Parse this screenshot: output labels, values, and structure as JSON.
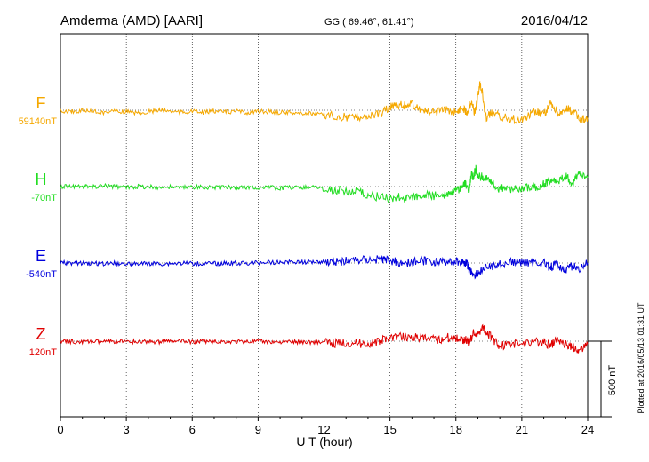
{
  "header": {
    "station": "Amderma (AMD)  [AARI]",
    "coords": "GG ( 69.46°,  61.41°)",
    "date": "2016/04/12"
  },
  "footer": {
    "plotted": "Plotted at 2016/05/13 01:31  UT"
  },
  "chart_data": {
    "type": "line",
    "title": "Amderma (AMD)  [AARI]",
    "xlabel": "U T (hour)",
    "ylabel": "",
    "x_ticks": [
      0,
      3,
      6,
      9,
      12,
      15,
      18,
      21,
      24
    ],
    "xlim": [
      0,
      24
    ],
    "scale_bar": "500 nT",
    "grid": true,
    "colors": {
      "F": "#f5a800",
      "H": "#22dd22",
      "E": "#0000dd",
      "Z": "#e00000"
    },
    "series": [
      {
        "name": "F",
        "baseline_label": "59140nT",
        "baseline_nT": 59140,
        "points": [
          [
            0,
            -6
          ],
          [
            0.5,
            -10
          ],
          [
            1,
            0
          ],
          [
            1.5,
            -8
          ],
          [
            2,
            -15
          ],
          [
            2.5,
            -5
          ],
          [
            3,
            -10
          ],
          [
            3.5,
            -18
          ],
          [
            4,
            -10
          ],
          [
            4.5,
            0
          ],
          [
            5,
            -5
          ],
          [
            5.5,
            -12
          ],
          [
            6,
            -8
          ],
          [
            6.5,
            -15
          ],
          [
            7,
            -5
          ],
          [
            7.5,
            -12
          ],
          [
            8,
            -8
          ],
          [
            8.5,
            -14
          ],
          [
            9,
            -10
          ],
          [
            9.5,
            -8
          ],
          [
            10,
            -16
          ],
          [
            10.5,
            -12
          ],
          [
            11,
            -20
          ],
          [
            11.5,
            -24
          ],
          [
            12,
            -28
          ],
          [
            12.5,
            -40
          ],
          [
            13,
            -48
          ],
          [
            13.5,
            -44
          ],
          [
            14,
            -38
          ],
          [
            14.5,
            -30
          ],
          [
            15,
            20
          ],
          [
            15.2,
            40
          ],
          [
            15.6,
            30
          ],
          [
            16,
            40
          ],
          [
            16.4,
            10
          ],
          [
            16.8,
            -20
          ],
          [
            17.2,
            -10
          ],
          [
            17.6,
            0
          ],
          [
            18,
            -10
          ],
          [
            18.3,
            20
          ],
          [
            18.5,
            -10
          ],
          [
            18.7,
            60
          ],
          [
            18.85,
            -20
          ],
          [
            19,
            90
          ],
          [
            19.1,
            180
          ],
          [
            19.2,
            120
          ],
          [
            19.35,
            -50
          ],
          [
            19.6,
            -20
          ],
          [
            20,
            -40
          ],
          [
            20.5,
            -60
          ],
          [
            21,
            -60
          ],
          [
            21.3,
            -40
          ],
          [
            21.6,
            -10
          ],
          [
            22,
            -30
          ],
          [
            22.3,
            40
          ],
          [
            22.5,
            10
          ],
          [
            22.8,
            -30
          ],
          [
            23.1,
            10
          ],
          [
            23.4,
            -20
          ],
          [
            23.7,
            -60
          ],
          [
            24,
            -50
          ]
        ]
      },
      {
        "name": "H",
        "baseline_label": "-70nT",
        "baseline_nT": -70,
        "points": [
          [
            0,
            0
          ],
          [
            0.5,
            4
          ],
          [
            1,
            0
          ],
          [
            1.5,
            -2
          ],
          [
            2,
            4
          ],
          [
            2.5,
            0
          ],
          [
            3,
            -4
          ],
          [
            3.5,
            0
          ],
          [
            4,
            -2
          ],
          [
            4.5,
            -6
          ],
          [
            5,
            -4
          ],
          [
            5.5,
            -8
          ],
          [
            6,
            -2
          ],
          [
            6.5,
            -6
          ],
          [
            7,
            -4
          ],
          [
            7.5,
            -2
          ],
          [
            8,
            -6
          ],
          [
            8.5,
            -4
          ],
          [
            9,
            -8
          ],
          [
            9.5,
            -6
          ],
          [
            10,
            -10
          ],
          [
            10.5,
            -4
          ],
          [
            11,
            -6
          ],
          [
            11.5,
            0
          ],
          [
            12,
            -18
          ],
          [
            12.5,
            -20
          ],
          [
            13,
            -26
          ],
          [
            13.5,
            -34
          ],
          [
            14,
            -60
          ],
          [
            14.5,
            -66
          ],
          [
            15,
            -76
          ],
          [
            15.4,
            -72
          ],
          [
            15.8,
            -80
          ],
          [
            16.2,
            -60
          ],
          [
            16.6,
            -56
          ],
          [
            17,
            -60
          ],
          [
            17.4,
            -54
          ],
          [
            17.8,
            -38
          ],
          [
            18,
            -28
          ],
          [
            18.2,
            -8
          ],
          [
            18.4,
            20
          ],
          [
            18.6,
            -20
          ],
          [
            18.7,
            90
          ],
          [
            18.8,
            60
          ],
          [
            18.9,
            120
          ],
          [
            19,
            70
          ],
          [
            19.3,
            60
          ],
          [
            19.6,
            40
          ],
          [
            19.9,
            -10
          ],
          [
            20.2,
            -10
          ],
          [
            20.6,
            -20
          ],
          [
            21,
            -8
          ],
          [
            21.4,
            -6
          ],
          [
            21.8,
            -12
          ],
          [
            22,
            20
          ],
          [
            22.3,
            40
          ],
          [
            22.6,
            30
          ],
          [
            23,
            70
          ],
          [
            23.3,
            20
          ],
          [
            23.6,
            80
          ],
          [
            24,
            60
          ]
        ]
      },
      {
        "name": "E",
        "baseline_label": "-540nT",
        "baseline_nT": -540,
        "points": [
          [
            0,
            0
          ],
          [
            0.5,
            0
          ],
          [
            1,
            -4
          ],
          [
            1.5,
            -2
          ],
          [
            2,
            -4
          ],
          [
            2.5,
            -2
          ],
          [
            3,
            -4
          ],
          [
            3.5,
            -6
          ],
          [
            4,
            -4
          ],
          [
            4.5,
            -6
          ],
          [
            5,
            -4
          ],
          [
            5.5,
            -2
          ],
          [
            6,
            -2
          ],
          [
            6.5,
            -6
          ],
          [
            7,
            -4
          ],
          [
            7.5,
            -2
          ],
          [
            8,
            0
          ],
          [
            8.5,
            -2
          ],
          [
            9,
            2
          ],
          [
            9.5,
            6
          ],
          [
            10,
            4
          ],
          [
            10.5,
            8
          ],
          [
            11,
            6
          ],
          [
            11.5,
            10
          ],
          [
            12,
            8
          ],
          [
            12.5,
            10
          ],
          [
            13,
            14
          ],
          [
            13.5,
            18
          ],
          [
            14,
            20
          ],
          [
            14.5,
            24
          ],
          [
            14.8,
            20
          ],
          [
            15.2,
            10
          ],
          [
            15.6,
            0
          ],
          [
            16,
            8
          ],
          [
            16.4,
            16
          ],
          [
            16.8,
            12
          ],
          [
            17.2,
            6
          ],
          [
            17.6,
            8
          ],
          [
            18,
            10
          ],
          [
            18.3,
            4
          ],
          [
            18.5,
            0
          ],
          [
            18.6,
            -40
          ],
          [
            18.8,
            -80
          ],
          [
            19,
            -70
          ],
          [
            19.2,
            -50
          ],
          [
            19.6,
            -20
          ],
          [
            20,
            -10
          ],
          [
            20.5,
            4
          ],
          [
            21,
            2
          ],
          [
            21.5,
            4
          ],
          [
            22,
            0
          ],
          [
            22.3,
            -30
          ],
          [
            22.6,
            -10
          ],
          [
            23,
            -40
          ],
          [
            23.3,
            -20
          ],
          [
            23.6,
            -40
          ],
          [
            24,
            0
          ]
        ]
      },
      {
        "name": "Z",
        "baseline_label": "120nT",
        "baseline_nT": 120,
        "points": [
          [
            0,
            0
          ],
          [
            0.5,
            -2
          ],
          [
            1,
            -4
          ],
          [
            1.5,
            -2
          ],
          [
            2,
            -4
          ],
          [
            2.5,
            -2
          ],
          [
            3,
            -2
          ],
          [
            3.5,
            -4
          ],
          [
            4,
            -2
          ],
          [
            4.5,
            -4
          ],
          [
            5,
            -2
          ],
          [
            5.5,
            -2
          ],
          [
            6,
            -4
          ],
          [
            6.5,
            -2
          ],
          [
            7,
            -4
          ],
          [
            7.5,
            -2
          ],
          [
            8,
            -4
          ],
          [
            8.5,
            -2
          ],
          [
            9,
            -2
          ],
          [
            9.5,
            -4
          ],
          [
            10,
            -4
          ],
          [
            10.5,
            -6
          ],
          [
            11,
            -4
          ],
          [
            11.5,
            -6
          ],
          [
            12,
            -8
          ],
          [
            12.5,
            -14
          ],
          [
            13,
            -10
          ],
          [
            13.5,
            -14
          ],
          [
            14,
            -18
          ],
          [
            14.5,
            -6
          ],
          [
            14.8,
            20
          ],
          [
            15.2,
            30
          ],
          [
            15.6,
            30
          ],
          [
            16,
            28
          ],
          [
            16.4,
            20
          ],
          [
            16.8,
            12
          ],
          [
            17.2,
            10
          ],
          [
            17.6,
            24
          ],
          [
            18,
            20
          ],
          [
            18.3,
            14
          ],
          [
            18.5,
            10
          ],
          [
            18.6,
            -12
          ],
          [
            18.8,
            60
          ],
          [
            19,
            40
          ],
          [
            19.2,
            100
          ],
          [
            19.4,
            60
          ],
          [
            19.7,
            10
          ],
          [
            20,
            -30
          ],
          [
            20.5,
            -20
          ],
          [
            21,
            -14
          ],
          [
            21.5,
            0
          ],
          [
            22,
            -10
          ],
          [
            22.3,
            -30
          ],
          [
            22.6,
            10
          ],
          [
            23,
            -20
          ],
          [
            23.3,
            -40
          ],
          [
            23.6,
            -60
          ],
          [
            24,
            -20
          ]
        ]
      }
    ]
  }
}
